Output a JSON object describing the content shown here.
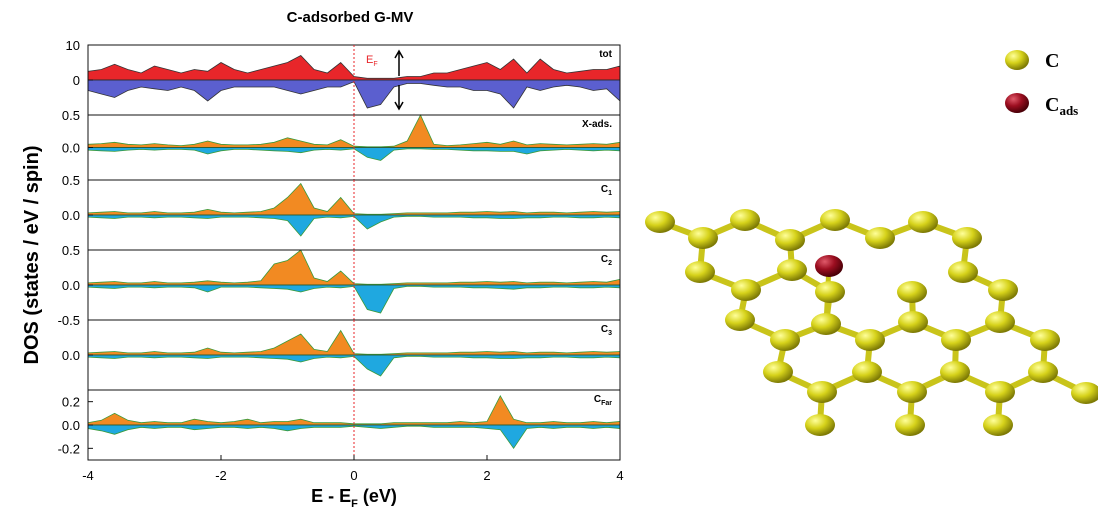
{
  "chart_data": [
    {
      "type": "area",
      "title": "C-adsorbed G-MV",
      "ylabel": "DOS (states / eV / spin)",
      "label": "tot",
      "annotation": "E",
      "annotation_sub": "F",
      "edgecolor": "#333333",
      "vline": 0,
      "xlim": [
        -4,
        4
      ],
      "ylim": [
        -10,
        10
      ],
      "yticks": [
        0,
        10
      ],
      "x": [
        -4,
        -3.8,
        -3.6,
        -3.4,
        -3.2,
        -3,
        -2.8,
        -2.6,
        -2.4,
        -2.2,
        -2,
        -1.8,
        -1.6,
        -1.4,
        -1.2,
        -1,
        -0.8,
        -0.6,
        -0.4,
        -0.2,
        0,
        0.2,
        0.4,
        0.6,
        0.8,
        1,
        1.2,
        1.4,
        1.6,
        1.8,
        2,
        2.2,
        2.4,
        2.6,
        2.8,
        3,
        3.2,
        3.4,
        3.6,
        3.8,
        4
      ],
      "series": [
        {
          "color": "#e8262a",
          "values": [
            2.5,
            3,
            4.5,
            3,
            2,
            4,
            3,
            2,
            3,
            2.5,
            5,
            3,
            2,
            3,
            4,
            5,
            7,
            3,
            2,
            5,
            1,
            0.5,
            0.5,
            0.5,
            1,
            1,
            2,
            2,
            3,
            4,
            5,
            3,
            6,
            2,
            6,
            3,
            2,
            2.5,
            3,
            3,
            4
          ]
        },
        {
          "color": "#5b5fcf",
          "values": [
            -3,
            -4,
            -5,
            -3,
            -2,
            -2.5,
            -3,
            -2,
            -3,
            -6,
            -3,
            -2,
            -2,
            -2,
            -2,
            -3,
            -4,
            -3,
            -2,
            -2,
            -0.5,
            -8,
            -7,
            -2,
            -1,
            -1,
            -1.5,
            -2,
            -2,
            -3,
            -3,
            -4,
            -8,
            -2,
            -3,
            -2,
            -1.5,
            -2,
            -3,
            -2.5,
            -6
          ]
        }
      ]
    },
    {
      "type": "area",
      "label": "X-ads.",
      "edgecolor": "#3a9a3a",
      "vline": 0,
      "xlim": [
        -4,
        4
      ],
      "ylim": [
        -0.5,
        0.5
      ],
      "yticks": [
        {
          "value": 0,
          "label": "0.0"
        },
        0.5
      ],
      "x": [
        -4,
        -3.8,
        -3.6,
        -3.4,
        -3.2,
        -3,
        -2.8,
        -2.6,
        -2.4,
        -2.2,
        -2,
        -1.8,
        -1.6,
        -1.4,
        -1.2,
        -1,
        -0.8,
        -0.6,
        -0.4,
        -0.2,
        0,
        0.2,
        0.4,
        0.6,
        0.8,
        1,
        1.2,
        1.4,
        1.6,
        1.8,
        2,
        2.2,
        2.4,
        2.6,
        2.8,
        3,
        3.2,
        3.4,
        3.6,
        3.8,
        4
      ],
      "series": [
        {
          "color": "#f28a22",
          "values": [
            0.05,
            0.06,
            0.08,
            0.05,
            0.04,
            0.06,
            0.04,
            0.03,
            0.05,
            0.1,
            0.05,
            0.04,
            0.04,
            0.05,
            0.08,
            0.15,
            0.1,
            0.05,
            0.04,
            0.12,
            0.02,
            0.01,
            0.01,
            0.02,
            0.1,
            0.5,
            0.05,
            0.03,
            0.04,
            0.06,
            0.08,
            0.05,
            0.1,
            0.04,
            0.06,
            0.05,
            0.04,
            0.05,
            0.06,
            0.05,
            0.08
          ]
        },
        {
          "color": "#1fa8e0",
          "values": [
            -0.04,
            -0.05,
            -0.06,
            -0.04,
            -0.03,
            -0.04,
            -0.03,
            -0.03,
            -0.04,
            -0.1,
            -0.05,
            -0.03,
            -0.03,
            -0.04,
            -0.05,
            -0.06,
            -0.08,
            -0.04,
            -0.03,
            -0.04,
            -0.02,
            -0.15,
            -0.2,
            -0.04,
            -0.02,
            -0.02,
            -0.03,
            -0.03,
            -0.04,
            -0.05,
            -0.05,
            -0.06,
            -0.06,
            -0.1,
            -0.05,
            -0.04,
            -0.03,
            -0.04,
            -0.05,
            -0.04,
            -0.05
          ]
        }
      ]
    },
    {
      "type": "area",
      "label": "C",
      "label_sub": "1",
      "edgecolor": "#3a9a3a",
      "vline": 0,
      "xlim": [
        -4,
        4
      ],
      "ylim": [
        -0.5,
        0.5
      ],
      "yticks": [
        {
          "value": 0,
          "label": "0.0"
        },
        0.5
      ],
      "x": [
        -4,
        -3.8,
        -3.6,
        -3.4,
        -3.2,
        -3,
        -2.8,
        -2.6,
        -2.4,
        -2.2,
        -2,
        -1.8,
        -1.6,
        -1.4,
        -1.2,
        -1,
        -0.8,
        -0.6,
        -0.4,
        -0.2,
        0,
        0.2,
        0.4,
        0.6,
        0.8,
        1,
        1.2,
        1.4,
        1.6,
        1.8,
        2,
        2.2,
        2.4,
        2.6,
        2.8,
        3,
        3.2,
        3.4,
        3.6,
        3.8,
        4
      ],
      "series": [
        {
          "color": "#f28a22",
          "values": [
            0.03,
            0.04,
            0.05,
            0.03,
            0.03,
            0.05,
            0.03,
            0.03,
            0.04,
            0.08,
            0.04,
            0.03,
            0.04,
            0.05,
            0.1,
            0.25,
            0.45,
            0.1,
            0.05,
            0.25,
            0.02,
            0.01,
            0.01,
            0.02,
            0.03,
            0.03,
            0.03,
            0.03,
            0.04,
            0.04,
            0.05,
            0.04,
            0.05,
            0.03,
            0.04,
            0.04,
            0.03,
            0.04,
            0.05,
            0.04,
            0.05
          ]
        },
        {
          "color": "#1fa8e0",
          "values": [
            -0.03,
            -0.04,
            -0.05,
            -0.03,
            -0.03,
            -0.04,
            -0.03,
            -0.03,
            -0.04,
            -0.05,
            -0.03,
            -0.03,
            -0.03,
            -0.04,
            -0.05,
            -0.08,
            -0.3,
            -0.05,
            -0.03,
            -0.04,
            -0.02,
            -0.2,
            -0.1,
            -0.03,
            -0.02,
            -0.02,
            -0.03,
            -0.03,
            -0.03,
            -0.04,
            -0.04,
            -0.05,
            -0.05,
            -0.04,
            -0.04,
            -0.03,
            -0.03,
            -0.04,
            -0.04,
            -0.03,
            -0.04
          ]
        }
      ]
    },
    {
      "type": "area",
      "label": "C",
      "label_sub": "2",
      "edgecolor": "#3a9a3a",
      "vline": 0,
      "xlim": [
        -4,
        4
      ],
      "ylim": [
        -0.5,
        0.5
      ],
      "yticks": [
        -0.5,
        {
          "value": 0,
          "label": "0.0"
        },
        0.5
      ],
      "x": [
        -4,
        -3.8,
        -3.6,
        -3.4,
        -3.2,
        -3,
        -2.8,
        -2.6,
        -2.4,
        -2.2,
        -2,
        -1.8,
        -1.6,
        -1.4,
        -1.2,
        -1,
        -0.8,
        -0.6,
        -0.4,
        -0.2,
        0,
        0.2,
        0.4,
        0.6,
        0.8,
        1,
        1.2,
        1.4,
        1.6,
        1.8,
        2,
        2.2,
        2.4,
        2.6,
        2.8,
        3,
        3.2,
        3.4,
        3.6,
        3.8,
        4
      ],
      "series": [
        {
          "color": "#f28a22",
          "values": [
            0.03,
            0.04,
            0.05,
            0.03,
            0.03,
            0.05,
            0.03,
            0.03,
            0.04,
            0.06,
            0.04,
            0.03,
            0.04,
            0.06,
            0.3,
            0.35,
            0.5,
            0.1,
            0.05,
            0.2,
            0.02,
            0.01,
            0.01,
            0.02,
            0.03,
            0.03,
            0.03,
            0.03,
            0.04,
            0.04,
            0.05,
            0.04,
            0.05,
            0.03,
            0.04,
            0.04,
            0.03,
            0.04,
            0.05,
            0.04,
            0.08
          ]
        },
        {
          "color": "#1fa8e0",
          "values": [
            -0.03,
            -0.04,
            -0.05,
            -0.03,
            -0.03,
            -0.04,
            -0.03,
            -0.03,
            -0.04,
            -0.1,
            -0.03,
            -0.03,
            -0.03,
            -0.04,
            -0.05,
            -0.06,
            -0.1,
            -0.05,
            -0.03,
            -0.04,
            -0.02,
            -0.35,
            -0.4,
            -0.05,
            -0.02,
            -0.02,
            -0.03,
            -0.03,
            -0.03,
            -0.04,
            -0.04,
            -0.05,
            -0.06,
            -0.04,
            -0.04,
            -0.03,
            -0.03,
            -0.04,
            -0.04,
            -0.03,
            -0.04
          ]
        }
      ]
    },
    {
      "type": "area",
      "label": "C",
      "label_sub": "3",
      "edgecolor": "#3a9a3a",
      "vline": 0,
      "xlim": [
        -4,
        4
      ],
      "ylim": [
        -0.5,
        0.5
      ],
      "yticks": [
        {
          "value": 0,
          "label": "0.0"
        }
      ],
      "x": [
        -4,
        -3.8,
        -3.6,
        -3.4,
        -3.2,
        -3,
        -2.8,
        -2.6,
        -2.4,
        -2.2,
        -2,
        -1.8,
        -1.6,
        -1.4,
        -1.2,
        -1,
        -0.8,
        -0.6,
        -0.4,
        -0.2,
        0,
        0.2,
        0.4,
        0.6,
        0.8,
        1,
        1.2,
        1.4,
        1.6,
        1.8,
        2,
        2.2,
        2.4,
        2.6,
        2.8,
        3,
        3.2,
        3.4,
        3.6,
        3.8,
        4
      ],
      "series": [
        {
          "color": "#f28a22",
          "values": [
            0.03,
            0.04,
            0.05,
            0.03,
            0.03,
            0.05,
            0.03,
            0.03,
            0.04,
            0.1,
            0.04,
            0.03,
            0.04,
            0.05,
            0.1,
            0.2,
            0.3,
            0.08,
            0.05,
            0.35,
            0.02,
            0.01,
            0.01,
            0.02,
            0.03,
            0.03,
            0.03,
            0.03,
            0.04,
            0.04,
            0.05,
            0.04,
            0.05,
            0.03,
            0.04,
            0.04,
            0.03,
            0.04,
            0.05,
            0.04,
            0.05
          ]
        },
        {
          "color": "#1fa8e0",
          "values": [
            -0.03,
            -0.04,
            -0.05,
            -0.03,
            -0.03,
            -0.04,
            -0.03,
            -0.03,
            -0.04,
            -0.05,
            -0.03,
            -0.03,
            -0.03,
            -0.04,
            -0.05,
            -0.06,
            -0.1,
            -0.05,
            -0.03,
            -0.04,
            -0.02,
            -0.2,
            -0.3,
            -0.04,
            -0.02,
            -0.02,
            -0.03,
            -0.03,
            -0.03,
            -0.04,
            -0.04,
            -0.05,
            -0.05,
            -0.04,
            -0.04,
            -0.03,
            -0.03,
            -0.04,
            -0.04,
            -0.03,
            -0.04
          ]
        }
      ]
    },
    {
      "type": "area",
      "label": "C",
      "label_sub": "Far",
      "edgecolor": "#3a9a3a",
      "vline": 0,
      "xlabel": "E - E",
      "xlabel_sub": "F",
      "xlabel_end": "(eV)",
      "xlim": [
        -4,
        4
      ],
      "xticks": [
        -4,
        -2,
        0,
        2,
        4
      ],
      "ylim": [
        -0.3,
        0.3
      ],
      "yticks": [
        -0.2,
        {
          "value": 0,
          "label": "0.0"
        },
        0.2
      ],
      "x": [
        -4,
        -3.8,
        -3.6,
        -3.4,
        -3.2,
        -3,
        -2.8,
        -2.6,
        -2.4,
        -2.2,
        -2,
        -1.8,
        -1.6,
        -1.4,
        -1.2,
        -1,
        -0.8,
        -0.6,
        -0.4,
        -0.2,
        0,
        0.2,
        0.4,
        0.6,
        0.8,
        1,
        1.2,
        1.4,
        1.6,
        1.8,
        2,
        2.2,
        2.4,
        2.6,
        2.8,
        3,
        3.2,
        3.4,
        3.6,
        3.8,
        4
      ],
      "series": [
        {
          "color": "#f28a22",
          "values": [
            0.02,
            0.04,
            0.1,
            0.04,
            0.02,
            0.03,
            0.02,
            0.02,
            0.05,
            0.03,
            0.02,
            0.03,
            0.05,
            0.02,
            0.03,
            0.03,
            0.05,
            0.02,
            0.02,
            0.02,
            0.01,
            0.01,
            0.01,
            0.02,
            0.02,
            0.02,
            0.02,
            0.02,
            0.03,
            0.02,
            0.03,
            0.25,
            0.05,
            0.02,
            0.02,
            0.03,
            0.02,
            0.02,
            0.03,
            0.02,
            0.03
          ]
        },
        {
          "color": "#1fa8e0",
          "values": [
            -0.03,
            -0.05,
            -0.08,
            -0.04,
            -0.02,
            -0.03,
            -0.02,
            -0.02,
            -0.04,
            -0.03,
            -0.02,
            -0.02,
            -0.03,
            -0.02,
            -0.03,
            -0.05,
            -0.03,
            -0.02,
            -0.02,
            -0.02,
            -0.01,
            -0.02,
            -0.03,
            -0.02,
            -0.01,
            -0.01,
            -0.02,
            -0.02,
            -0.02,
            -0.02,
            -0.03,
            -0.04,
            -0.2,
            -0.03,
            -0.02,
            -0.03,
            -0.02,
            -0.02,
            -0.03,
            -0.02,
            -0.03
          ]
        }
      ]
    }
  ],
  "structure": {
    "legend": [
      {
        "label": "C"
      },
      {
        "label": "C",
        "sub": "ads"
      }
    ]
  }
}
